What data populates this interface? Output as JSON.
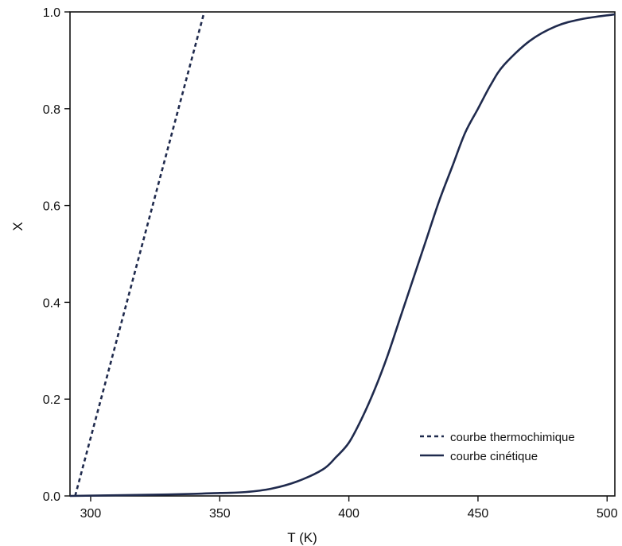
{
  "chart_data": {
    "type": "line",
    "xlabel": "T (K)",
    "ylabel": "X",
    "xlim": [
      292,
      503
    ],
    "ylim": [
      0,
      1.0
    ],
    "xticks": [
      300,
      350,
      400,
      450,
      500
    ],
    "yticks": [
      0.0,
      0.2,
      0.4,
      0.6,
      0.8,
      1.0
    ],
    "xtick_labels": [
      "300",
      "350",
      "400",
      "450",
      "500"
    ],
    "ytick_labels": [
      "0.0",
      "0.2",
      "0.4",
      "0.6",
      "0.8",
      "1.0"
    ],
    "grid": false,
    "legend_position": "bottom-right",
    "series": [
      {
        "name": "courbe thermochimique",
        "style": "dashed",
        "color": "#1f2a4d",
        "x": [
          294,
          344
        ],
        "y": [
          0.0,
          1.0
        ]
      },
      {
        "name": "courbe cinétique",
        "style": "solid",
        "color": "#1f2a4d",
        "x": [
          292,
          330,
          350,
          360,
          370,
          380,
          390,
          395,
          400,
          405,
          410,
          415,
          420,
          425,
          430,
          435,
          440,
          445,
          450,
          455,
          460,
          470,
          480,
          490,
          503
        ],
        "y": [
          0.0,
          0.003,
          0.006,
          0.008,
          0.015,
          0.03,
          0.055,
          0.08,
          0.11,
          0.16,
          0.22,
          0.29,
          0.37,
          0.45,
          0.53,
          0.61,
          0.68,
          0.75,
          0.8,
          0.85,
          0.89,
          0.94,
          0.97,
          0.985,
          0.995
        ]
      }
    ]
  }
}
